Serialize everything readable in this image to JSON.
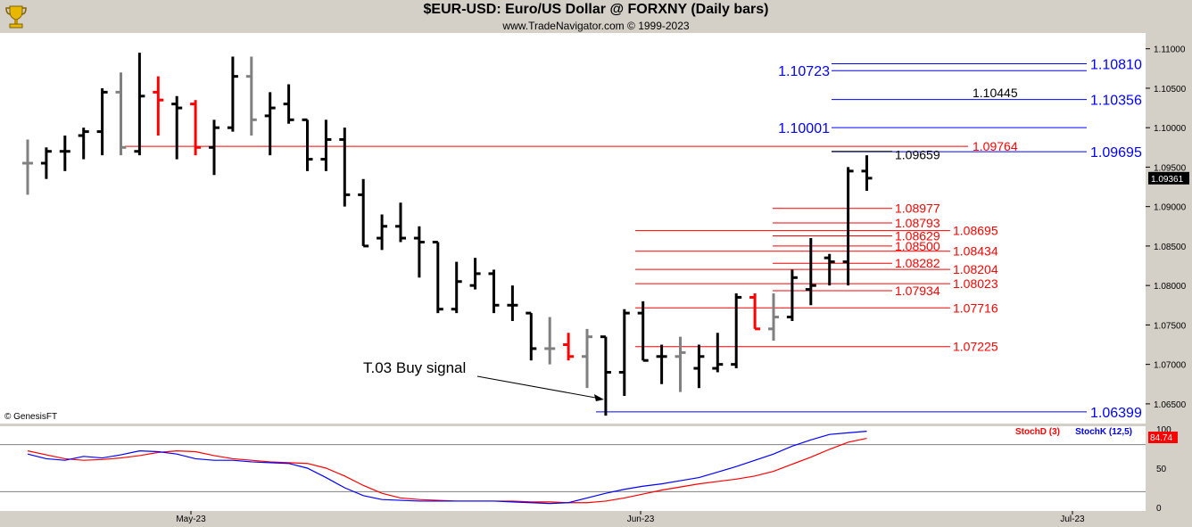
{
  "header": {
    "title": "$EUR-USD:  Euro/US Dollar @ FORXNY  (Daily bars)",
    "subtitle": "www.TradeNavigator.com © 1999-2023"
  },
  "watermark": "© GenesisFT",
  "colors": {
    "up": "#000000",
    "down": "#ff0000",
    "neutral": "#808080",
    "blue": "#0000ff",
    "red": "#ff0000",
    "panel": "#ffffff",
    "frame": "#d4d0c8"
  },
  "chart_data": [
    {
      "type": "bar",
      "subtype": "ohlc",
      "y_axis": {
        "ylim": [
          1.0625,
          1.112
        ],
        "ticks": [
          "1.11000",
          "1.10500",
          "1.10000",
          "1.09500",
          "1.09000",
          "1.08500",
          "1.08000",
          "1.07500",
          "1.07000",
          "1.06500"
        ],
        "position": "right"
      },
      "x_axis": {
        "labels": [
          "May-23",
          "Jun-23",
          "Jul-23"
        ]
      },
      "last_price": "1.09361",
      "bars": [
        {
          "o": 1.0955,
          "h": 1.0985,
          "l": 1.0915,
          "c": 1.0955,
          "col": "neutral"
        },
        {
          "o": 1.0955,
          "h": 1.0975,
          "l": 1.0935,
          "c": 1.097,
          "col": "up"
        },
        {
          "o": 1.097,
          "h": 1.099,
          "l": 1.0945,
          "c": 1.097,
          "col": "up"
        },
        {
          "o": 1.099,
          "h": 1.1,
          "l": 1.096,
          "c": 1.0995,
          "col": "up"
        },
        {
          "o": 1.0995,
          "h": 1.105,
          "l": 1.0965,
          "c": 1.1045,
          "col": "up"
        },
        {
          "o": 1.1045,
          "h": 1.107,
          "l": 1.0965,
          "c": 1.0975,
          "col": "neutral"
        },
        {
          "o": 1.097,
          "h": 1.1095,
          "l": 1.0965,
          "c": 1.104,
          "col": "up"
        },
        {
          "o": 1.1045,
          "h": 1.1065,
          "l": 1.099,
          "c": 1.1035,
          "col": "down"
        },
        {
          "o": 1.103,
          "h": 1.104,
          "l": 1.096,
          "c": 1.1025,
          "col": "up"
        },
        {
          "o": 1.103,
          "h": 1.1035,
          "l": 1.0965,
          "c": 1.0975,
          "col": "down"
        },
        {
          "o": 1.0975,
          "h": 1.101,
          "l": 1.094,
          "c": 1.1,
          "col": "up"
        },
        {
          "o": 1.1,
          "h": 1.109,
          "l": 1.0995,
          "c": 1.1065,
          "col": "up"
        },
        {
          "o": 1.1065,
          "h": 1.109,
          "l": 1.099,
          "c": 1.101,
          "col": "neutral"
        },
        {
          "o": 1.1015,
          "h": 1.1045,
          "l": 1.0965,
          "c": 1.1025,
          "col": "up"
        },
        {
          "o": 1.103,
          "h": 1.1055,
          "l": 1.1005,
          "c": 1.101,
          "col": "up"
        },
        {
          "o": 1.101,
          "h": 1.101,
          "l": 1.0945,
          "c": 1.096,
          "col": "up"
        },
        {
          "o": 1.096,
          "h": 1.101,
          "l": 1.0945,
          "c": 1.0985,
          "col": "up"
        },
        {
          "o": 1.0985,
          "h": 1.1,
          "l": 1.09,
          "c": 1.0915,
          "col": "up"
        },
        {
          "o": 1.0915,
          "h": 1.0935,
          "l": 1.085,
          "c": 1.085,
          "col": "up"
        },
        {
          "o": 1.086,
          "h": 1.089,
          "l": 1.0845,
          "c": 1.0875,
          "col": "up"
        },
        {
          "o": 1.0875,
          "h": 1.0905,
          "l": 1.0855,
          "c": 1.086,
          "col": "up"
        },
        {
          "o": 1.086,
          "h": 1.0875,
          "l": 1.081,
          "c": 1.0855,
          "col": "up"
        },
        {
          "o": 1.0855,
          "h": 1.0855,
          "l": 1.0765,
          "c": 1.077,
          "col": "up"
        },
        {
          "o": 1.077,
          "h": 1.083,
          "l": 1.0765,
          "c": 1.0805,
          "col": "up"
        },
        {
          "o": 1.08,
          "h": 1.0835,
          "l": 1.0795,
          "c": 1.0815,
          "col": "up"
        },
        {
          "o": 1.0815,
          "h": 1.082,
          "l": 1.0765,
          "c": 1.0775,
          "col": "up"
        },
        {
          "o": 1.0775,
          "h": 1.08,
          "l": 1.0755,
          "c": 1.0775,
          "col": "up"
        },
        {
          "o": 1.0765,
          "h": 1.0765,
          "l": 1.0705,
          "c": 1.072,
          "col": "up"
        },
        {
          "o": 1.072,
          "h": 1.076,
          "l": 1.07,
          "c": 1.072,
          "col": "neutral"
        },
        {
          "o": 1.0725,
          "h": 1.074,
          "l": 1.0705,
          "c": 1.071,
          "col": "down"
        },
        {
          "o": 1.071,
          "h": 1.0745,
          "l": 1.067,
          "c": 1.0735,
          "col": "neutral"
        },
        {
          "o": 1.0735,
          "h": 1.0735,
          "l": 1.0635,
          "c": 1.069,
          "col": "up"
        },
        {
          "o": 1.069,
          "h": 1.077,
          "l": 1.066,
          "c": 1.0765,
          "col": "up"
        },
        {
          "o": 1.0765,
          "h": 1.078,
          "l": 1.0705,
          "c": 1.0705,
          "col": "up"
        },
        {
          "o": 1.071,
          "h": 1.0725,
          "l": 1.0675,
          "c": 1.071,
          "col": "up"
        },
        {
          "o": 1.071,
          "h": 1.0735,
          "l": 1.0665,
          "c": 1.0715,
          "col": "neutral"
        },
        {
          "o": 1.0695,
          "h": 1.0725,
          "l": 1.067,
          "c": 1.071,
          "col": "up"
        },
        {
          "o": 1.0695,
          "h": 1.074,
          "l": 1.069,
          "c": 1.07,
          "col": "up"
        },
        {
          "o": 1.07,
          "h": 1.079,
          "l": 1.0695,
          "c": 1.0785,
          "col": "up"
        },
        {
          "o": 1.0785,
          "h": 1.079,
          "l": 1.0745,
          "c": 1.0745,
          "col": "down"
        },
        {
          "o": 1.0745,
          "h": 1.079,
          "l": 1.073,
          "c": 1.076,
          "col": "neutral"
        },
        {
          "o": 1.076,
          "h": 1.082,
          "l": 1.0755,
          "c": 1.081,
          "col": "up"
        },
        {
          "o": 1.0795,
          "h": 1.086,
          "l": 1.0775,
          "c": 1.08,
          "col": "up"
        },
        {
          "o": 1.0835,
          "h": 1.084,
          "l": 1.08,
          "c": 1.083,
          "col": "up"
        },
        {
          "o": 1.083,
          "h": 1.095,
          "l": 1.08,
          "c": 1.0945,
          "col": "up"
        },
        {
          "o": 1.0945,
          "h": 1.0965,
          "l": 1.092,
          "c": 1.0936,
          "col": "up"
        }
      ],
      "levels": [
        {
          "value": 1.1081,
          "label": "1.10810",
          "color": "blue",
          "label_side": "right"
        },
        {
          "value": 1.10723,
          "label": "1.10723",
          "color": "blue",
          "label_side": "left"
        },
        {
          "value": 1.10445,
          "label": "1.10445",
          "color": "black",
          "label_side": "mid"
        },
        {
          "value": 1.10356,
          "label": "1.10356",
          "color": "blue",
          "label_side": "right"
        },
        {
          "value": 1.10001,
          "label": "1.10001",
          "color": "blue",
          "label_side": "left"
        },
        {
          "value": 1.09764,
          "label": "1.09764",
          "color": "red",
          "label_side": "mid"
        },
        {
          "value": 1.09695,
          "label": "1.09695",
          "color": "blue",
          "label_side": "right"
        },
        {
          "value": 1.09659,
          "label": "1.09659",
          "color": "black",
          "label_side": "mid"
        },
        {
          "value": 1.08977,
          "label": "1.08977",
          "color": "red",
          "label_side": "inner"
        },
        {
          "value": 1.08793,
          "label": "1.08793",
          "color": "red",
          "label_side": "inner"
        },
        {
          "value": 1.08695,
          "label": "1.08695",
          "color": "red",
          "label_side": "outer"
        },
        {
          "value": 1.08629,
          "label": "1.08629",
          "color": "red",
          "label_side": "inner"
        },
        {
          "value": 1.085,
          "label": "1.08500",
          "color": "red",
          "label_side": "inner"
        },
        {
          "value": 1.08434,
          "label": "1.08434",
          "color": "red",
          "label_side": "outer"
        },
        {
          "value": 1.08282,
          "label": "1.08282",
          "color": "red",
          "label_side": "inner"
        },
        {
          "value": 1.08204,
          "label": "1.08204",
          "color": "red",
          "label_side": "outer"
        },
        {
          "value": 1.08023,
          "label": "1.08023",
          "color": "red",
          "label_side": "outer"
        },
        {
          "value": 1.07934,
          "label": "1.07934",
          "color": "red",
          "label_side": "inner"
        },
        {
          "value": 1.07716,
          "label": "1.07716",
          "color": "red",
          "label_side": "outer"
        },
        {
          "value": 1.07225,
          "label": "1.07225",
          "color": "red",
          "label_side": "outer"
        },
        {
          "value": 1.06399,
          "label": "1.06399",
          "color": "blue",
          "label_side": "right"
        }
      ],
      "annotation": {
        "text": "T.03 Buy signal",
        "target_bar": 31
      }
    },
    {
      "type": "line",
      "legend": [
        "StochD (3)",
        "StochK (12,5)"
      ],
      "ylim": [
        0,
        100
      ],
      "ticks": [
        "100",
        "50",
        "0"
      ],
      "last_value": "84.74",
      "series": [
        {
          "name": "StochD (3)",
          "color": "red",
          "values": [
            72,
            67,
            62,
            60,
            61,
            63,
            66,
            70,
            72,
            71,
            66,
            62,
            60,
            58,
            57,
            56,
            50,
            40,
            28,
            18,
            12,
            10,
            9,
            8,
            8,
            8,
            8,
            7,
            7,
            6,
            6,
            8,
            12,
            17,
            22,
            26,
            30,
            33,
            36,
            40,
            46,
            55,
            64,
            74,
            83,
            88
          ]
        },
        {
          "name": "StochK (12,5)",
          "color": "blue",
          "values": [
            68,
            62,
            60,
            65,
            63,
            67,
            72,
            71,
            68,
            62,
            60,
            60,
            58,
            57,
            56,
            50,
            38,
            25,
            15,
            10,
            9,
            8,
            8,
            8,
            8,
            8,
            7,
            6,
            5,
            6,
            12,
            18,
            23,
            27,
            30,
            34,
            38,
            45,
            52,
            60,
            68,
            78,
            86,
            93,
            95,
            97
          ]
        }
      ]
    }
  ]
}
